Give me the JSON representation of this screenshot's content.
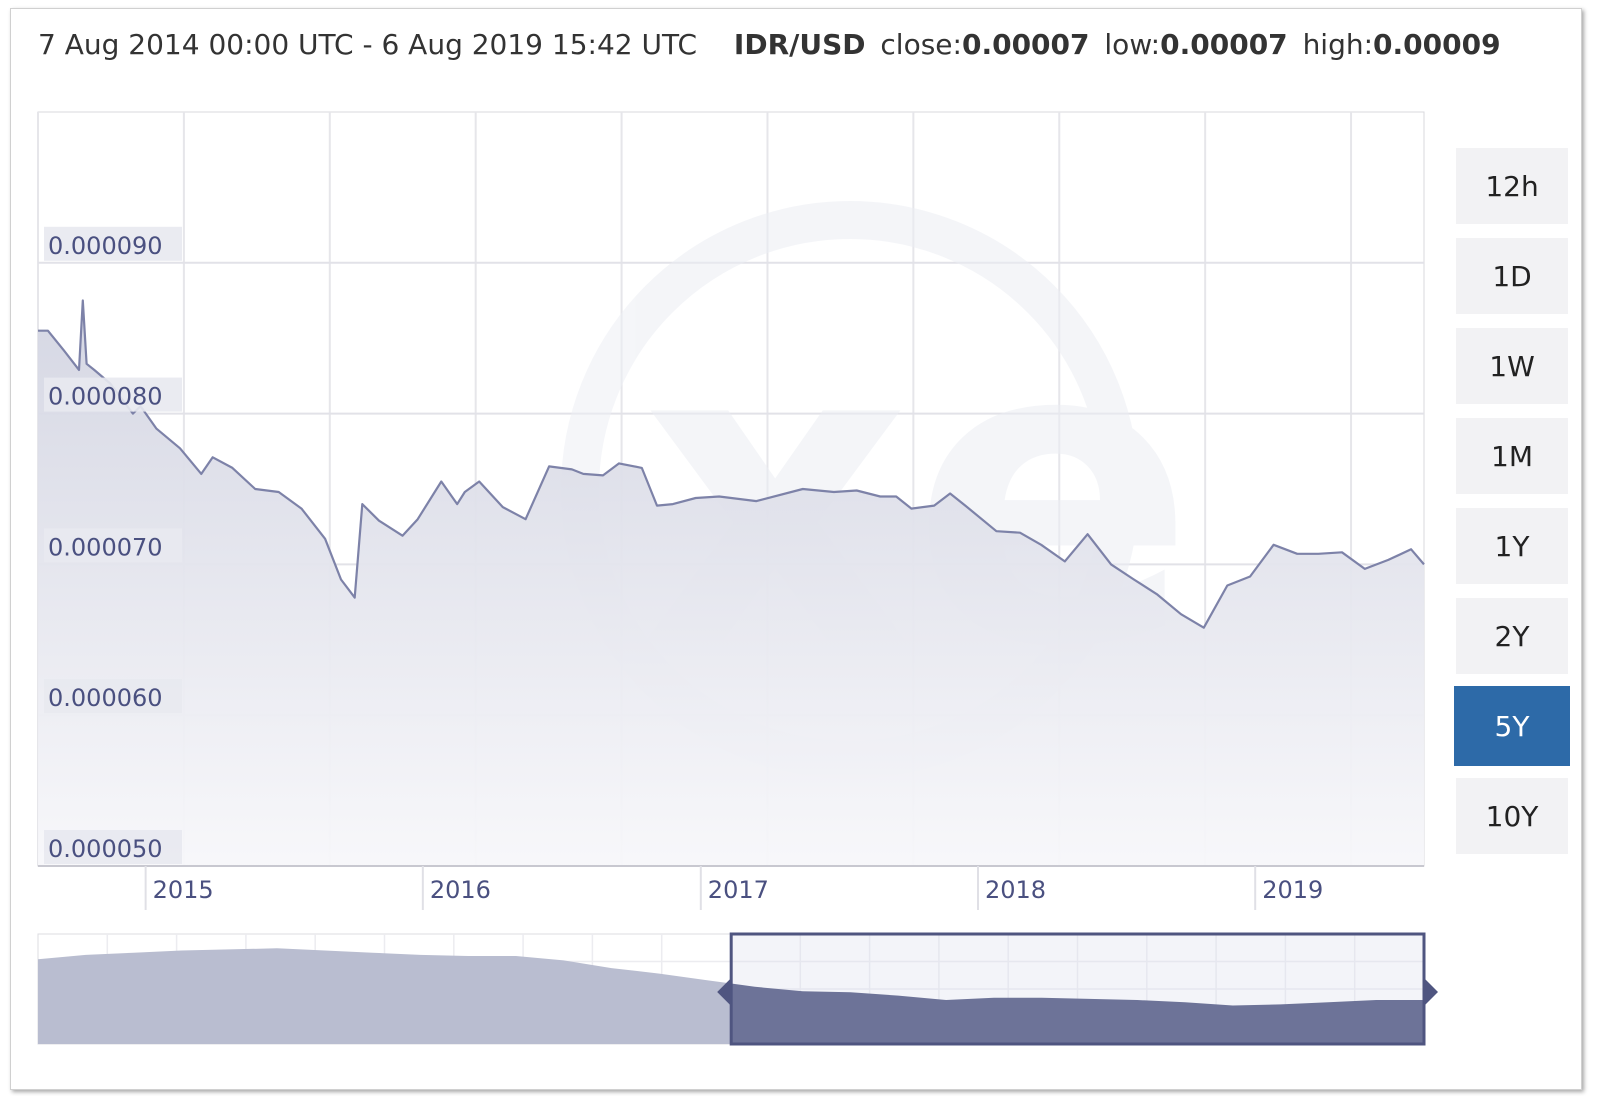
{
  "header": {
    "range_text": "7 Aug 2014 00:00 UTC - 6 Aug 2019 15:42 UTC",
    "pair": "IDR/USD",
    "close_label": "close:",
    "close_value": "0.00007",
    "low_label": "low:",
    "low_value": "0.00007",
    "high_label": "high:",
    "high_value": "0.00009"
  },
  "range_buttons": [
    {
      "label": "12h",
      "active": false
    },
    {
      "label": "1D",
      "active": false
    },
    {
      "label": "1W",
      "active": false
    },
    {
      "label": "1M",
      "active": false
    },
    {
      "label": "1Y",
      "active": false
    },
    {
      "label": "2Y",
      "active": false
    },
    {
      "label": "5Y",
      "active": true
    },
    {
      "label": "10Y",
      "active": false
    }
  ],
  "colors": {
    "line": "#7d82a8",
    "area_top": "#d3d5e2",
    "area_bottom": "#f7f7fa",
    "navigator_left": "#b9bdd0",
    "navigator_right": "#6d7398",
    "active_button": "#2d6aa8",
    "label_text": "#4a5080"
  },
  "chart_data": {
    "type": "area",
    "series": [
      {
        "x": [
          "2014-08-07",
          "2014-08-20",
          "2014-09-10",
          "2014-09-30",
          "2014-10-05",
          "2014-10-10",
          "2014-10-20",
          "2014-11-10",
          "2014-12-10",
          "2014-12-20",
          "2015-01-10",
          "2015-02-10",
          "2015-03-10",
          "2015-03-25",
          "2015-04-20",
          "2015-05-20",
          "2015-06-20",
          "2015-07-20",
          "2015-08-20",
          "2015-09-10",
          "2015-09-28",
          "2015-10-08",
          "2015-10-30",
          "2015-11-30",
          "2015-12-20",
          "2016-01-20",
          "2016-02-10",
          "2016-02-20",
          "2016-03-10",
          "2016-04-10",
          "2016-05-10",
          "2016-06-10",
          "2016-07-10",
          "2016-07-25",
          "2016-08-20",
          "2016-09-10",
          "2016-10-10",
          "2016-10-30",
          "2016-11-20",
          "2016-12-20",
          "2017-01-20",
          "2017-03-10",
          "2017-05-10",
          "2017-06-20",
          "2017-07-20",
          "2017-08-20",
          "2017-09-10",
          "2017-09-30",
          "2017-10-30",
          "2017-11-20",
          "2017-12-10",
          "2018-01-20",
          "2018-02-20",
          "2018-03-20",
          "2018-04-20",
          "2018-05-20",
          "2018-06-20",
          "2018-07-20",
          "2018-08-20",
          "2018-09-20",
          "2018-10-20",
          "2018-11-20",
          "2018-12-20",
          "2019-01-20",
          "2019-02-20",
          "2019-03-20",
          "2019-04-20",
          "2019-05-20",
          "2019-06-20",
          "2019-07-20",
          "2019-08-06"
        ],
        "y": [
          8.55e-05,
          8.55e-05,
          8.42e-05,
          8.29e-05,
          8.75e-05,
          8.33e-05,
          8.29e-05,
          8.2e-05,
          8e-05,
          8.05e-05,
          7.9e-05,
          7.77e-05,
          7.6e-05,
          7.71e-05,
          7.64e-05,
          7.5e-05,
          7.48e-05,
          7.37e-05,
          7.17e-05,
          6.9e-05,
          6.78e-05,
          7.4e-05,
          7.29e-05,
          7.19e-05,
          7.3e-05,
          7.55e-05,
          7.4e-05,
          7.48e-05,
          7.55e-05,
          7.38e-05,
          7.3e-05,
          7.65e-05,
          7.63e-05,
          7.6e-05,
          7.59e-05,
          7.67e-05,
          7.64e-05,
          7.39e-05,
          7.4e-05,
          7.44e-05,
          7.45e-05,
          7.42e-05,
          7.5e-05,
          7.48e-05,
          7.49e-05,
          7.45e-05,
          7.45e-05,
          7.37e-05,
          7.39e-05,
          7.47e-05,
          7.39e-05,
          7.22e-05,
          7.21e-05,
          7.13e-05,
          7.02e-05,
          7.2e-05,
          7e-05,
          6.9e-05,
          6.8e-05,
          6.67e-05,
          6.58e-05,
          6.86e-05,
          6.92e-05,
          7.13e-05,
          7.07e-05,
          7.07e-05,
          7.08e-05,
          6.97e-05,
          7.03e-05,
          7.1e-05,
          7e-05
        ]
      }
    ],
    "ylim": [
      5e-05,
      0.0001
    ],
    "y_ticks": [
      "0.000090",
      "0.000080",
      "0.000070",
      "0.000060",
      "0.000050"
    ],
    "x_ticks": [
      "2015",
      "2016",
      "2017",
      "2018",
      "2019"
    ],
    "navigator": {
      "x_start": "2009-08-07",
      "x_end": "2019-08-06",
      "selected_start": "2014-08-07",
      "selected_end": "2019-08-06",
      "y": [
        8.85e-05,
        9.05e-05,
        9.15e-05,
        9.25e-05,
        9.3e-05,
        9.35e-05,
        9.25e-05,
        9.15e-05,
        9.05e-05,
        9e-05,
        9e-05,
        8.8e-05,
        8.45e-05,
        8.2e-05,
        7.9e-05,
        7.6e-05,
        7.4e-05,
        7.35e-05,
        7.2e-05,
        7e-05,
        7.1e-05,
        7.1e-05,
        7.05e-05,
        7e-05,
        6.9e-05,
        6.75e-05,
        6.8e-05,
        6.9e-05,
        7e-05,
        7e-05
      ],
      "ylim": [
        5e-05,
        0.0001
      ]
    },
    "watermark": "xe",
    "grid": true,
    "legend": "none"
  }
}
